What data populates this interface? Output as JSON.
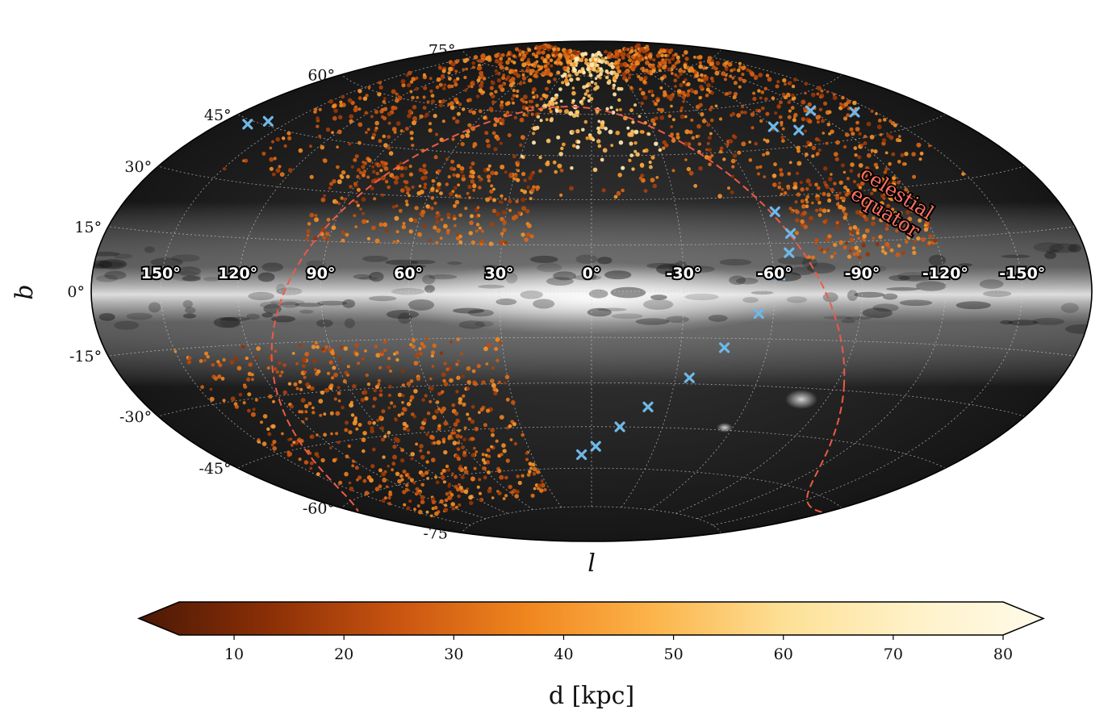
{
  "chart_data": {
    "type": "scatter",
    "projection": "Aitoff/Hammer all-sky (Galactic coordinates)",
    "xlabel": "l",
    "ylabel": "b",
    "longitude_ticks": [
      "150°",
      "120°",
      "90°",
      "60°",
      "30°",
      "0°",
      "-30°",
      "-60°",
      "-90°",
      "-120°",
      "-150°"
    ],
    "latitude_ticks": [
      "75°",
      "60°",
      "45°",
      "30°",
      "15°",
      "0°",
      "-15°",
      "-30°",
      "-45°",
      "-60°",
      "-75°"
    ],
    "grid": true,
    "background": "grayscale Milky Way sky map",
    "annotation": "celestial equator",
    "series": [
      {
        "marker": "dot",
        "color_by": "d [kpc]",
        "regions": [
          {
            "l_range": [
              -150,
              150
            ],
            "b_range": [
              30,
              85
            ],
            "note": "dense northern halo stars"
          },
          {
            "l_range": [
              20,
              100
            ],
            "b_range": [
              15,
              40
            ]
          },
          {
            "l_range": [
              -120,
              -70
            ],
            "b_range": [
              10,
              35
            ]
          },
          {
            "l_range": [
              30,
              150
            ],
            "b_range": [
              -70,
              -15
            ],
            "note": "southern halo stars"
          }
        ]
      },
      {
        "marker": "x",
        "color": "#6fb8e8",
        "points": [
          {
            "l": 167,
            "b": 44
          },
          {
            "l": 160,
            "b": 46
          },
          {
            "l": -65,
            "b": 25
          },
          {
            "l": -68,
            "b": 18
          },
          {
            "l": -66,
            "b": 12
          },
          {
            "l": -62,
            "b": 5
          },
          {
            "l": -100,
            "b": 50
          },
          {
            "l": -120,
            "b": 55
          },
          {
            "l": -140,
            "b": 52
          },
          {
            "l": -90,
            "b": 52
          },
          {
            "l": -55,
            "b": -7
          },
          {
            "l": -45,
            "b": -18
          },
          {
            "l": -35,
            "b": -28
          },
          {
            "l": -22,
            "b": -38
          },
          {
            "l": -12,
            "b": -45
          },
          {
            "l": -2,
            "b": -52
          },
          {
            "l": 5,
            "b": -55
          }
        ]
      }
    ],
    "colorbar": {
      "label": "d [kpc]",
      "ticks": [
        10,
        20,
        30,
        40,
        50,
        60,
        70,
        80
      ],
      "range": [
        5,
        80
      ],
      "extend": "both",
      "colormap": "copper-orange to cream"
    }
  },
  "colors": {
    "equator": "#ef5a45",
    "cross": "#6fb8e8",
    "cmap": [
      "#4a1806",
      "#8a2f06",
      "#c95410",
      "#f0861e",
      "#fcb54c",
      "#fde096",
      "#fff2c8",
      "#fffaea"
    ]
  },
  "text": {
    "xlabel": "l",
    "ylabel": "b",
    "annotation_line1": "celestial",
    "annotation_line2": "equator",
    "colorbar_label": "d [kpc]"
  }
}
